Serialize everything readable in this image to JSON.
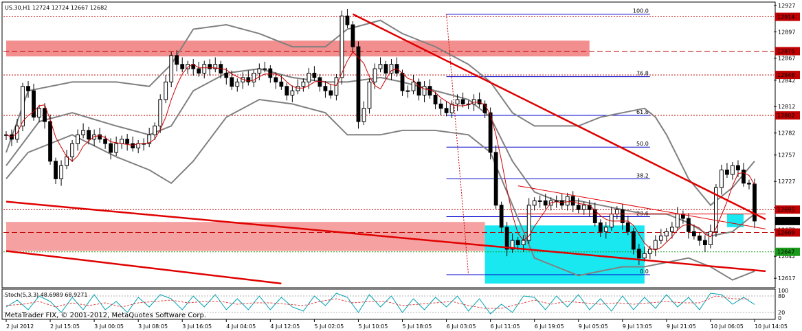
{
  "chart_data": {
    "type": "candlestick",
    "symbol_header": "US.30,H1  12724 12724 12667 12682",
    "copyright": "MetaTrader FIX, © 2001-2012, MetaQuotes Software Corp.",
    "ylim": [
      12607,
      12930
    ],
    "price_ticks": [
      12927,
      12897,
      12867,
      12842,
      12812,
      12782,
      12757,
      12727,
      12697,
      12672,
      12642,
      12617
    ],
    "time_ticks": [
      {
        "bar": 0,
        "label": "2 Jul 2012"
      },
      {
        "bar": 8,
        "label": "2 Jul 15:05"
      },
      {
        "bar": 16,
        "label": "3 Jul 00:05"
      },
      {
        "bar": 24,
        "label": "3 Jul 08:05"
      },
      {
        "bar": 32,
        "label": "3 Jul 16:05"
      },
      {
        "bar": 40,
        "label": "4 Jul 04:05"
      },
      {
        "bar": 48,
        "label": "4 Jul 12:05"
      },
      {
        "bar": 56,
        "label": "5 Jul 02:05"
      },
      {
        "bar": 64,
        "label": "5 Jul 10:05"
      },
      {
        "bar": 72,
        "label": "5 Jul 18:05"
      },
      {
        "bar": 80,
        "label": "6 Jul 03:05"
      },
      {
        "bar": 88,
        "label": "6 Jul 11:05"
      },
      {
        "bar": 96,
        "label": "6 Jul 19:05"
      },
      {
        "bar": 104,
        "label": "9 Jul 05:05"
      },
      {
        "bar": 112,
        "label": "9 Jul 13:05"
      },
      {
        "bar": 120,
        "label": "9 Jul 21:05"
      },
      {
        "bar": 128,
        "label": "10 Jul 06:05"
      },
      {
        "bar": 136,
        "label": "10 Jul 14:05"
      }
    ],
    "closes": [
      12780,
      12775,
      12790,
      12835,
      12830,
      12800,
      12810,
      12795,
      12750,
      12730,
      12745,
      12755,
      12770,
      12780,
      12785,
      12775,
      12780,
      12775,
      12770,
      12760,
      12770,
      12775,
      12770,
      12765,
      12770,
      12770,
      12780,
      12790,
      12820,
      12840,
      12870,
      12860,
      12855,
      12860,
      12855,
      12850,
      12860,
      12855,
      12860,
      12850,
      12845,
      12835,
      12840,
      12845,
      12840,
      12850,
      12855,
      12855,
      12845,
      12840,
      12835,
      12825,
      12830,
      12835,
      12840,
      12850,
      12845,
      12835,
      12830,
      12825,
      12845,
      12915,
      12905,
      12880,
      12795,
      12810,
      12840,
      12855,
      12860,
      12850,
      12860,
      12850,
      12830,
      12830,
      12840,
      12825,
      12835,
      12825,
      12815,
      12810,
      12805,
      12815,
      12820,
      12815,
      12815,
      12820,
      12815,
      12805,
      12760,
      12700,
      12675,
      12650,
      12660,
      12655,
      12660,
      12700,
      12705,
      12705,
      12700,
      12705,
      12705,
      12700,
      12710,
      12700,
      12695,
      12700,
      12695,
      12680,
      12670,
      12675,
      12690,
      12695,
      12680,
      12670,
      12650,
      12640,
      12645,
      12650,
      12660,
      12665,
      12670,
      12675,
      12690,
      12685,
      12670,
      12665,
      12660,
      12655,
      12670,
      12720,
      12740,
      12735,
      12745,
      12740,
      12725,
      12724,
      12682
    ],
    "bollinger_upper_points": [
      [
        0,
        12760
      ],
      [
        4,
        12830
      ],
      [
        12,
        12840
      ],
      [
        20,
        12840
      ],
      [
        26,
        12835
      ],
      [
        30,
        12860
      ],
      [
        34,
        12900
      ],
      [
        40,
        12905
      ],
      [
        46,
        12895
      ],
      [
        52,
        12880
      ],
      [
        58,
        12880
      ],
      [
        62,
        12900
      ],
      [
        68,
        12910
      ],
      [
        72,
        12895
      ],
      [
        78,
        12880
      ],
      [
        84,
        12860
      ],
      [
        88,
        12840
      ],
      [
        92,
        12805
      ],
      [
        96,
        12790
      ],
      [
        100,
        12790
      ],
      [
        104,
        12790
      ],
      [
        108,
        12800
      ],
      [
        112,
        12805
      ],
      [
        116,
        12810
      ],
      [
        118,
        12800
      ],
      [
        120,
        12780
      ],
      [
        124,
        12730
      ],
      [
        128,
        12700
      ],
      [
        132,
        12720
      ],
      [
        136,
        12750
      ]
    ],
    "bollinger_lower_points": [
      [
        0,
        12730
      ],
      [
        4,
        12760
      ],
      [
        12,
        12780
      ],
      [
        20,
        12755
      ],
      [
        26,
        12740
      ],
      [
        30,
        12725
      ],
      [
        34,
        12750
      ],
      [
        40,
        12800
      ],
      [
        46,
        12820
      ],
      [
        52,
        12815
      ],
      [
        58,
        12805
      ],
      [
        62,
        12780
      ],
      [
        68,
        12780
      ],
      [
        72,
        12785
      ],
      [
        78,
        12785
      ],
      [
        84,
        12780
      ],
      [
        88,
        12760
      ],
      [
        92,
        12700
      ],
      [
        96,
        12640
      ],
      [
        100,
        12630
      ],
      [
        104,
        12620
      ],
      [
        108,
        12625
      ],
      [
        112,
        12630
      ],
      [
        116,
        12630
      ],
      [
        120,
        12635
      ],
      [
        124,
        12640
      ],
      [
        128,
        12630
      ],
      [
        132,
        12615
      ],
      [
        136,
        12625
      ]
    ],
    "bollinger_middle_points": [
      [
        0,
        12745
      ],
      [
        6,
        12795
      ],
      [
        12,
        12805
      ],
      [
        20,
        12790
      ],
      [
        26,
        12780
      ],
      [
        30,
        12790
      ],
      [
        34,
        12830
      ],
      [
        40,
        12850
      ],
      [
        46,
        12855
      ],
      [
        52,
        12845
      ],
      [
        58,
        12840
      ],
      [
        62,
        12840
      ],
      [
        68,
        12845
      ],
      [
        72,
        12840
      ],
      [
        78,
        12830
      ],
      [
        84,
        12820
      ],
      [
        88,
        12800
      ],
      [
        92,
        12750
      ],
      [
        96,
        12715
      ],
      [
        100,
        12705
      ],
      [
        104,
        12705
      ],
      [
        108,
        12700
      ],
      [
        112,
        12695
      ],
      [
        116,
        12690
      ],
      [
        120,
        12690
      ],
      [
        124,
        12680
      ],
      [
        128,
        12665
      ],
      [
        132,
        12670
      ],
      [
        136,
        12690
      ]
    ],
    "trendlines": [
      {
        "from": [
          63,
          12917
        ],
        "to": [
          138,
          12684
        ]
      },
      {
        "from": [
          0,
          12704
        ],
        "to": [
          138,
          12625
        ]
      },
      {
        "from": [
          0,
          12648
        ],
        "to": [
          50,
          12611
        ]
      },
      {
        "from": [
          93,
          12722
        ],
        "to": [
          138,
          12673
        ]
      },
      {
        "from": [
          93,
          12690
        ],
        "to": [
          138,
          12690
        ]
      }
    ],
    "fibonacci_levels": [
      {
        "label": "100.0",
        "value": 12917
      },
      {
        "label": "76.8",
        "value": 12846
      },
      {
        "label": "61.8",
        "value": 12802
      },
      {
        "label": "50.0",
        "value": 12766
      },
      {
        "label": "38.2",
        "value": 12730
      },
      {
        "label": "23.6",
        "value": 12687
      },
      {
        "label": "0.0",
        "value": 12621
      }
    ],
    "fib_bar_range": [
      80,
      117
    ],
    "zones": [
      {
        "type": "resistance",
        "bar_start": 0,
        "bar_end": 106,
        "top": 12887,
        "bottom": 12869,
        "color": "#f07a7a"
      },
      {
        "type": "support",
        "bar_start": 0,
        "bar_end": 87,
        "top": 12681,
        "bottom": 12648,
        "color": "#f49090"
      },
      {
        "type": "cyan",
        "bar_start": 87,
        "bar_end": 116,
        "top": 12677,
        "bottom": 12611,
        "color": "#00e5ee"
      },
      {
        "type": "cyan",
        "bar_start": 131,
        "bar_end": 134,
        "top": 12690,
        "bottom": 12675,
        "color": "#00e5ee"
      }
    ],
    "horizontal_levels": [
      {
        "value": 12914,
        "label": "12914",
        "color": "#c00000",
        "style": "dotted"
      },
      {
        "value": 12875,
        "label": "12875",
        "color": "#c00000",
        "style": "dashed"
      },
      {
        "value": 12848,
        "label": "12848",
        "color": "#c00000",
        "style": "dotted"
      },
      {
        "value": 12802,
        "label": "12802",
        "color": "#c00000",
        "style": "dotted"
      },
      {
        "value": 12695,
        "label": "12695",
        "color": "#c00000",
        "style": "dotted"
      },
      {
        "value": 12682,
        "label": "12682",
        "color": "#000000",
        "style": "none"
      },
      {
        "value": 12669,
        "label": "12669",
        "color": "#c00000",
        "style": "dashed"
      },
      {
        "value": 12647,
        "label": "12647",
        "color": "#1a9a1a",
        "style": "dotted"
      }
    ],
    "stochastic": {
      "label": "Stoch(5,3,3) 48.6989 68.9271",
      "ticks": [
        100,
        80,
        20,
        0
      ],
      "main_points": [
        [
          0,
          40
        ],
        [
          2,
          65
        ],
        [
          4,
          30
        ],
        [
          6,
          80
        ],
        [
          8,
          60
        ],
        [
          10,
          20
        ],
        [
          12,
          75
        ],
        [
          14,
          30
        ],
        [
          16,
          85
        ],
        [
          18,
          30
        ],
        [
          20,
          60
        ],
        [
          22,
          20
        ],
        [
          24,
          75
        ],
        [
          26,
          40
        ],
        [
          28,
          85
        ],
        [
          30,
          70
        ],
        [
          32,
          30
        ],
        [
          34,
          80
        ],
        [
          36,
          40
        ],
        [
          38,
          85
        ],
        [
          40,
          30
        ],
        [
          42,
          70
        ],
        [
          44,
          30
        ],
        [
          46,
          80
        ],
        [
          48,
          30
        ],
        [
          50,
          75
        ],
        [
          52,
          40
        ],
        [
          54,
          25
        ],
        [
          56,
          80
        ],
        [
          58,
          45
        ],
        [
          60,
          90
        ],
        [
          62,
          75
        ],
        [
          64,
          20
        ],
        [
          66,
          85
        ],
        [
          68,
          40
        ],
        [
          70,
          80
        ],
        [
          72,
          20
        ],
        [
          74,
          70
        ],
        [
          76,
          30
        ],
        [
          78,
          75
        ],
        [
          80,
          40
        ],
        [
          82,
          80
        ],
        [
          84,
          25
        ],
        [
          86,
          70
        ],
        [
          88,
          15
        ],
        [
          90,
          50
        ],
        [
          92,
          20
        ],
        [
          94,
          80
        ],
        [
          96,
          75
        ],
        [
          98,
          30
        ],
        [
          100,
          80
        ],
        [
          102,
          40
        ],
        [
          104,
          85
        ],
        [
          106,
          30
        ],
        [
          108,
          70
        ],
        [
          110,
          25
        ],
        [
          112,
          80
        ],
        [
          114,
          30
        ],
        [
          116,
          75
        ],
        [
          118,
          35
        ],
        [
          120,
          85
        ],
        [
          122,
          40
        ],
        [
          124,
          75
        ],
        [
          126,
          30
        ],
        [
          128,
          90
        ],
        [
          130,
          85
        ],
        [
          132,
          50
        ],
        [
          134,
          75
        ],
        [
          136,
          49
        ]
      ],
      "signal_points": [
        [
          0,
          45
        ],
        [
          3,
          50
        ],
        [
          6,
          60
        ],
        [
          9,
          40
        ],
        [
          12,
          55
        ],
        [
          15,
          45
        ],
        [
          18,
          55
        ],
        [
          21,
          40
        ],
        [
          24,
          55
        ],
        [
          27,
          60
        ],
        [
          30,
          65
        ],
        [
          33,
          55
        ],
        [
          36,
          60
        ],
        [
          39,
          60
        ],
        [
          42,
          50
        ],
        [
          45,
          55
        ],
        [
          48,
          55
        ],
        [
          51,
          50
        ],
        [
          54,
          45
        ],
        [
          57,
          60
        ],
        [
          60,
          70
        ],
        [
          63,
          55
        ],
        [
          66,
          60
        ],
        [
          69,
          60
        ],
        [
          72,
          45
        ],
        [
          75,
          50
        ],
        [
          78,
          55
        ],
        [
          81,
          60
        ],
        [
          84,
          45
        ],
        [
          87,
          35
        ],
        [
          90,
          35
        ],
        [
          93,
          50
        ],
        [
          96,
          65
        ],
        [
          99,
          50
        ],
        [
          102,
          60
        ],
        [
          105,
          55
        ],
        [
          108,
          50
        ],
        [
          111,
          55
        ],
        [
          114,
          50
        ],
        [
          117,
          55
        ],
        [
          120,
          60
        ],
        [
          123,
          55
        ],
        [
          126,
          55
        ],
        [
          129,
          80
        ],
        [
          132,
          70
        ],
        [
          135,
          69
        ]
      ]
    }
  }
}
